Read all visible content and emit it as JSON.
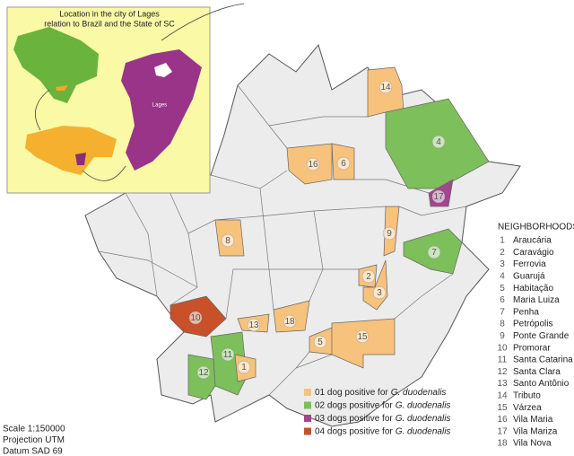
{
  "inset": {
    "title_lines": [
      "Location in the city of Lages",
      "relation to Brazil and the State of SC"
    ],
    "city_label": "Lages"
  },
  "map_labels": [
    "14",
    "4",
    "16",
    "6",
    "17",
    "8",
    "9",
    "7",
    "2",
    "3",
    "18",
    "13",
    "10",
    "5",
    "15",
    "11",
    "12",
    "1"
  ],
  "legend": [
    {
      "label": "01 dog positive for",
      "species": "G. duodenalis",
      "color": "#f7c27c"
    },
    {
      "label": "02 dogs positive for",
      "species": "G. duodenalis",
      "color": "#7dbf5a"
    },
    {
      "label": "03 dogs positive for",
      "species": "G. duodenalis",
      "color": "#a2468f"
    },
    {
      "label": "04 dogs positive for",
      "species": "G. duodenalis",
      "color": "#c8512a"
    }
  ],
  "neighborhoods": {
    "title": "NEIGHBORHOODS",
    "items": [
      {
        "number": "1",
        "name": "Araucária"
      },
      {
        "number": "2",
        "name": "Caravágio"
      },
      {
        "number": "3",
        "name": "Ferrovia"
      },
      {
        "number": "4",
        "name": "Guarujá"
      },
      {
        "number": "5",
        "name": "Habitação"
      },
      {
        "number": "6",
        "name": "Maria Luiza"
      },
      {
        "number": "7",
        "name": "Penha"
      },
      {
        "number": "8",
        "name": "Petrópolis"
      },
      {
        "number": "9",
        "name": "Ponte Grande"
      },
      {
        "number": "10",
        "name": "Promorar"
      },
      {
        "number": "11",
        "name": "Santa Catarina"
      },
      {
        "number": "12",
        "name": "Santa Clara"
      },
      {
        "number": "13",
        "name": "Santo Antônio"
      },
      {
        "number": "14",
        "name": "Tributo"
      },
      {
        "number": "15",
        "name": "Várzea"
      },
      {
        "number": "16",
        "name": "Vila Maria"
      },
      {
        "number": "17",
        "name": "Vila Mariza"
      },
      {
        "number": "18",
        "name": "Vila Nova"
      }
    ]
  },
  "scale": [
    "Scale 1:150000",
    "Projection UTM",
    "Datum SAD 69"
  ]
}
